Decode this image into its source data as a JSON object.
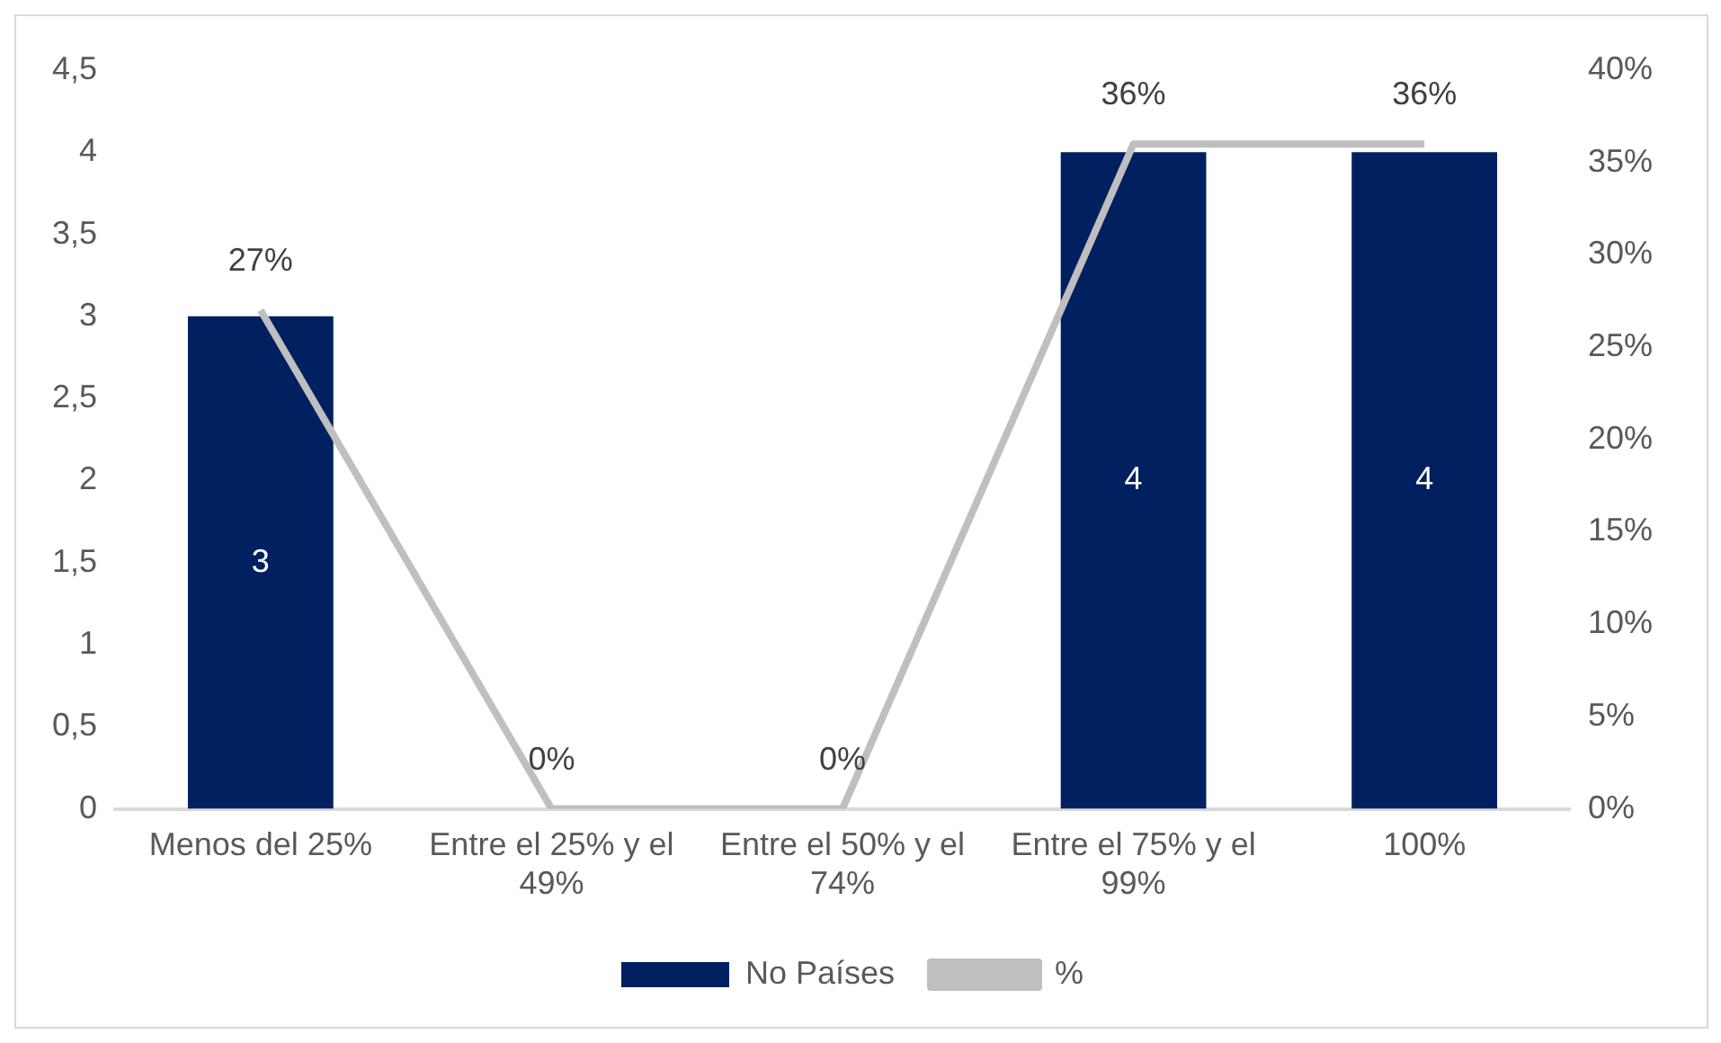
{
  "chart_data": {
    "type": "bar",
    "categories": [
      "Menos del 25%",
      "Entre el 25% y el 49%",
      "Entre el 50% y el 74%",
      "Entre el 75% y el 99%",
      "100%"
    ],
    "series": [
      {
        "name": "No Países",
        "color": "#002060",
        "values": [
          3,
          0,
          0,
          4,
          4
        ],
        "value_labels": [
          "3",
          null,
          null,
          "4",
          "4"
        ]
      },
      {
        "name": "%",
        "type": "line",
        "axis": "y2",
        "color": "#bfbfbf",
        "values": [
          27,
          0,
          0,
          36,
          36
        ],
        "value_labels": [
          "27%",
          "0%",
          "0%",
          "36%",
          "36%"
        ]
      }
    ],
    "ylim": [
      0,
      4.5
    ],
    "yticks": [
      0,
      {
        "value": 0.5,
        "label": "0,5"
      },
      1,
      {
        "value": 1.5,
        "label": "1,5"
      },
      2,
      {
        "value": 2.5,
        "label": "2,5"
      },
      3,
      {
        "value": 3.5,
        "label": "3,5"
      },
      4,
      {
        "value": 4.5,
        "label": "4,5"
      }
    ],
    "y2lim": [
      0,
      40
    ],
    "y2ticks": [
      {
        "value": 0,
        "label": "0%"
      },
      {
        "value": 5,
        "label": "5%"
      },
      {
        "value": 10,
        "label": "10%"
      },
      {
        "value": 15,
        "label": "15%"
      },
      {
        "value": 20,
        "label": "20%"
      },
      {
        "value": 25,
        "label": "25%"
      },
      {
        "value": 30,
        "label": "30%"
      },
      {
        "value": 35,
        "label": "35%"
      },
      {
        "value": 40,
        "label": "40%"
      }
    ],
    "grid": false,
    "legend": "bottom",
    "marker": "none",
    "line_style": "solid"
  }
}
